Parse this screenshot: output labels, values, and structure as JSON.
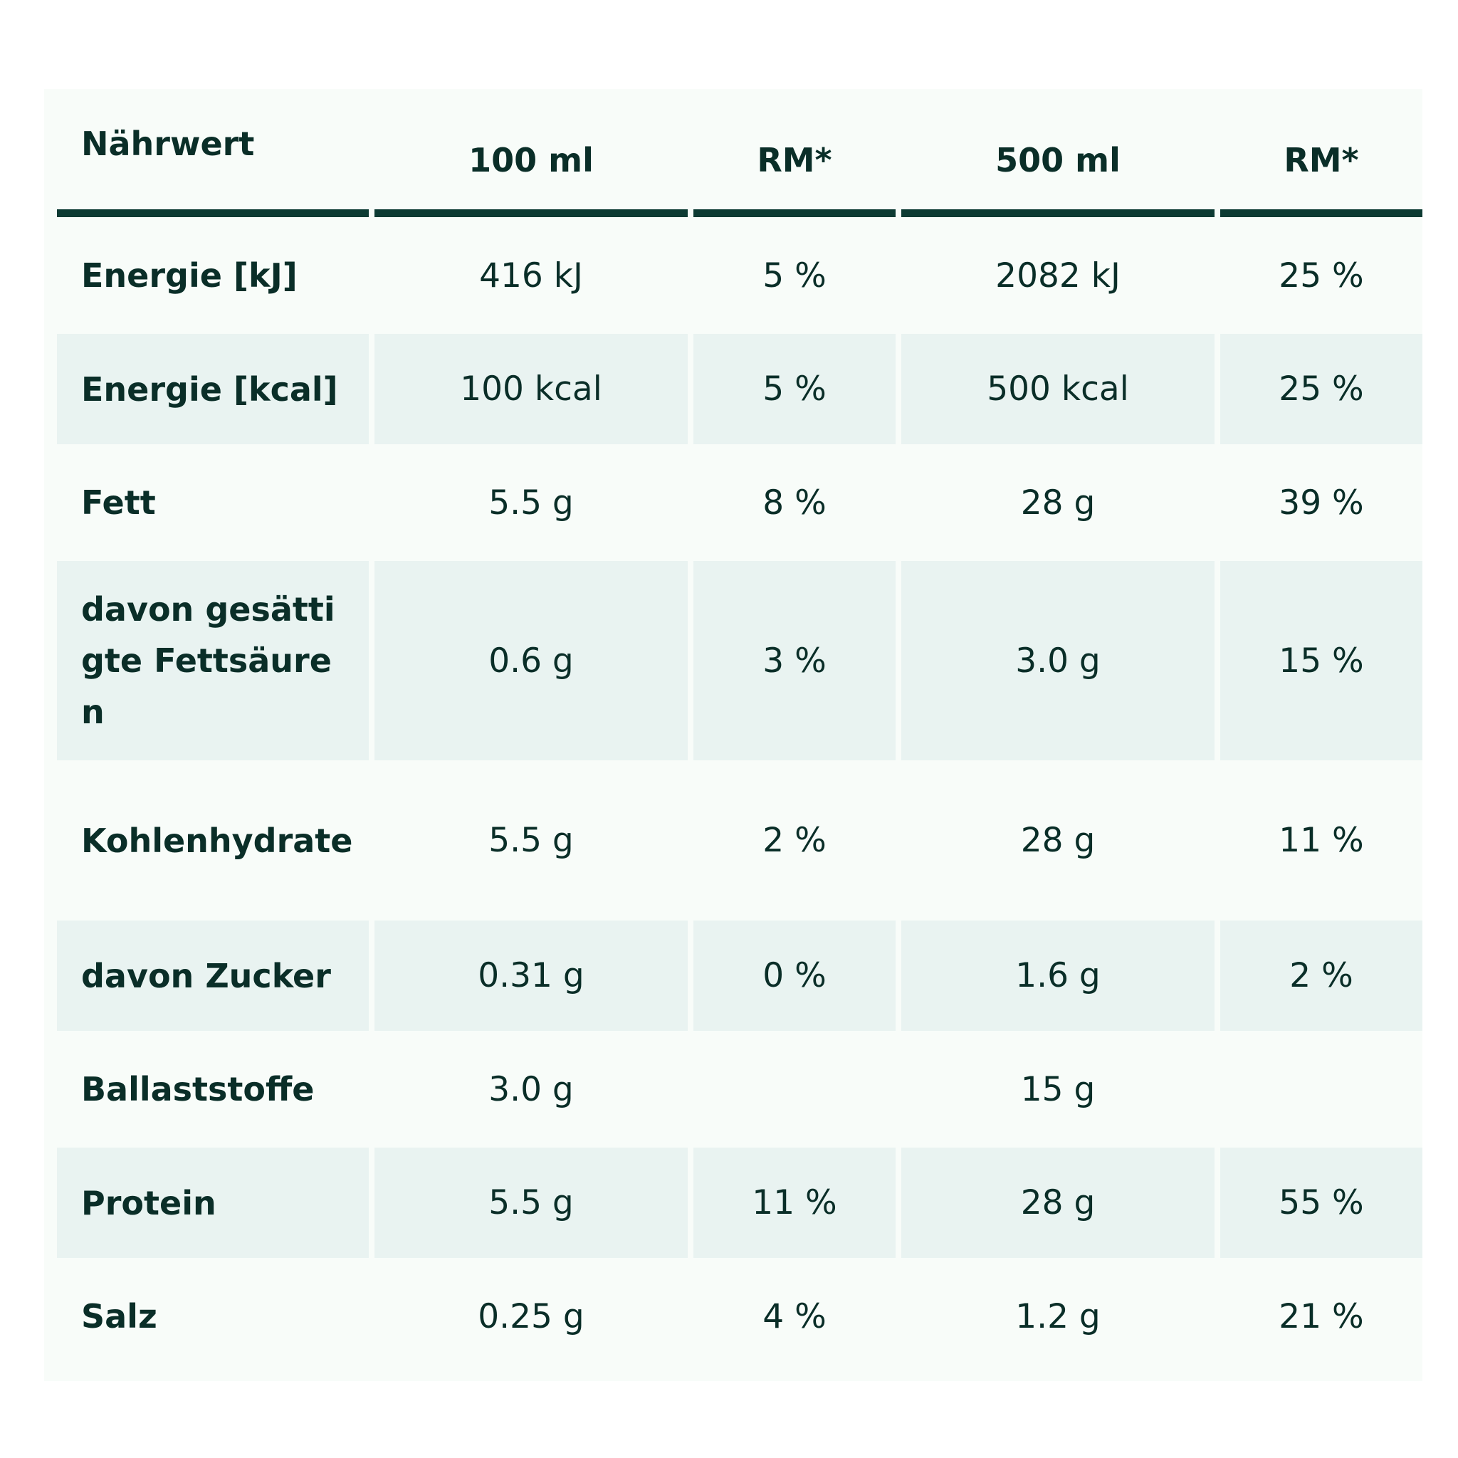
{
  "table": {
    "headers": [
      "Nährwert",
      "100 ml",
      "RM*",
      "500 ml",
      "RM*"
    ],
    "rows": [
      {
        "name": "Energie [kJ]",
        "per100": "416 kJ",
        "rm100": "5 %",
        "per500": "2082 kJ",
        "rm500": "25 %"
      },
      {
        "name": "Energie [kcal]",
        "per100": "100 kcal",
        "rm100": "5 %",
        "per500": "500 kcal",
        "rm500": "25 %"
      },
      {
        "name": "Fett",
        "per100": "5.5 g",
        "rm100": "8 %",
        "per500": "28 g",
        "rm500": "39 %"
      },
      {
        "name": "davon gesättigte Fettsäuren",
        "per100": "0.6 g",
        "rm100": "3 %",
        "per500": "3.0 g",
        "rm500": "15 %"
      },
      {
        "name": "Kohlenhydrate",
        "per100": "5.5 g",
        "rm100": "2 %",
        "per500": "28 g",
        "rm500": "11 %"
      },
      {
        "name": "davon Zucker",
        "per100": "0.31 g",
        "rm100": "0 %",
        "per500": "1.6 g",
        "rm500": "2 %"
      },
      {
        "name": "Ballaststoffe",
        "per100": "3.0 g",
        "rm100": "",
        "per500": "15 g",
        "rm500": ""
      },
      {
        "name": "Protein",
        "per100": "5.5 g",
        "rm100": "11 %",
        "per500": "28 g",
        "rm500": "55 %"
      },
      {
        "name": "Salz",
        "per100": "0.25 g",
        "rm100": "4 %",
        "per500": "1.2 g",
        "rm500": "21 %"
      }
    ]
  },
  "colors": {
    "text": "#0a2e28",
    "header_rule": "#0d3b33",
    "stripe": "#e9f3f1",
    "panel": "#f8fcf9"
  }
}
